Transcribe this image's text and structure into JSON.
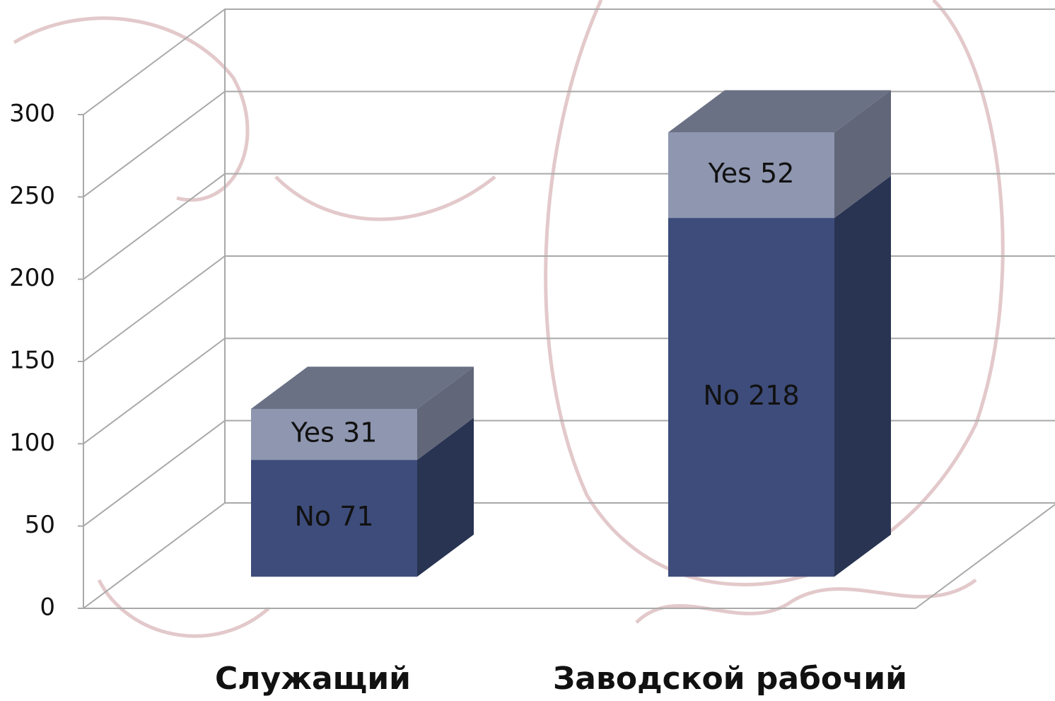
{
  "chart_data": {
    "type": "bar3d_stacked",
    "categories": [
      "Служащий",
      "Заводской рабочий"
    ],
    "series": [
      {
        "name": "No",
        "color": "#3d4c7a",
        "values": [
          71,
          218
        ],
        "value_labels": [
          "No 71",
          "No 218"
        ]
      },
      {
        "name": "Yes",
        "color": "#8e96b0",
        "values": [
          31,
          52
        ],
        "value_labels": [
          "Yes 31",
          "Yes 52"
        ]
      }
    ],
    "ylim": [
      0,
      300
    ],
    "yticks": [
      0,
      50,
      100,
      150,
      200,
      250,
      300
    ],
    "grid": true
  }
}
